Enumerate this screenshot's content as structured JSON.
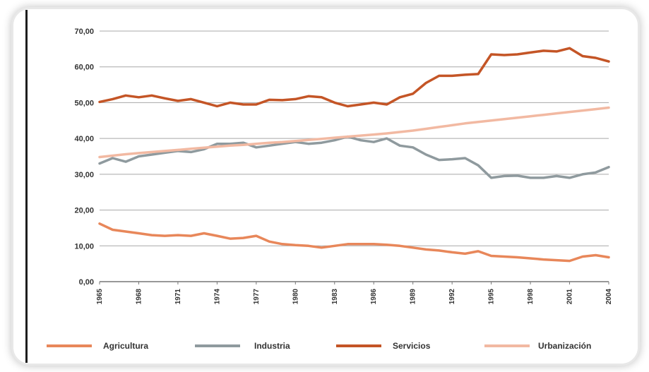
{
  "chart_data": {
    "type": "line",
    "ylim": [
      0,
      70
    ],
    "yticks": [
      "0,00",
      "10,00",
      "20,00",
      "30,00",
      "40,00",
      "50,00",
      "60,00",
      "70,00"
    ],
    "xticks": [
      "1965",
      "1968",
      "1971",
      "1974",
      "1977",
      "1980",
      "1983",
      "1986",
      "1989",
      "1992",
      "1995",
      "1998",
      "2001",
      "2004"
    ],
    "grid": true,
    "legend": "bottom",
    "x": [
      1965,
      1966,
      1967,
      1968,
      1969,
      1970,
      1971,
      1972,
      1973,
      1974,
      1975,
      1976,
      1977,
      1978,
      1979,
      1980,
      1981,
      1982,
      1983,
      1984,
      1985,
      1986,
      1987,
      1988,
      1989,
      1990,
      1991,
      1992,
      1993,
      1994,
      1995,
      1996,
      1997,
      1998,
      1999,
      2000,
      2001,
      2002,
      2003,
      2004
    ],
    "series": [
      {
        "name": "Agricultura",
        "color": "#e8875a",
        "values": [
          16.2,
          14.5,
          14,
          13.5,
          13,
          12.8,
          13,
          12.8,
          13.5,
          12.8,
          12,
          12.2,
          12.8,
          11.2,
          10.5,
          10.2,
          10,
          9.5,
          10,
          10.5,
          10.5,
          10.5,
          10.3,
          10,
          9.5,
          9,
          8.7,
          8.2,
          7.8,
          8.5,
          7.2,
          7,
          6.8,
          6.5,
          6.2,
          6,
          5.8,
          7,
          7.4,
          6.8
        ]
      },
      {
        "name": "Industria",
        "color": "#8f9a9e",
        "values": [
          33,
          34.5,
          33.5,
          35,
          35.5,
          36,
          36.5,
          36.2,
          37,
          38.5,
          38.5,
          38.8,
          37.5,
          38,
          38.5,
          39,
          38.5,
          38.8,
          39.5,
          40.5,
          39.5,
          39,
          40,
          38,
          37.5,
          35.5,
          34,
          34.2,
          34.5,
          32.5,
          29,
          29.5,
          29.6,
          29,
          29,
          29.5,
          29,
          30,
          30.5,
          32
        ]
      },
      {
        "name": "Servicios",
        "color": "#c45526",
        "values": [
          50.2,
          51,
          52,
          51.5,
          52,
          51.2,
          50.5,
          51,
          50,
          49,
          50,
          49.5,
          49.5,
          50.8,
          50.7,
          51,
          51.8,
          51.5,
          50,
          49,
          49.5,
          50,
          49.5,
          51.5,
          52.5,
          55.5,
          57.5,
          57.5,
          57.8,
          58,
          63.5,
          63.3,
          63.5,
          64,
          64.5,
          64.3,
          65.2,
          63,
          62.5,
          61.5
        ]
      },
      {
        "name": "Urbanización",
        "color": "#f2b9a2",
        "values": [
          34.8,
          35.2,
          35.6,
          35.9,
          36.2,
          36.5,
          36.8,
          37.1,
          37.4,
          37.7,
          38,
          38.2,
          38.5,
          38.8,
          39,
          39.3,
          39.6,
          39.9,
          40.2,
          40.5,
          40.8,
          41.1,
          41.4,
          41.8,
          42.2,
          42.7,
          43.2,
          43.7,
          44.2,
          44.6,
          45,
          45.4,
          45.8,
          46.2,
          46.6,
          47,
          47.4,
          47.8,
          48.2,
          48.6
        ]
      }
    ]
  }
}
